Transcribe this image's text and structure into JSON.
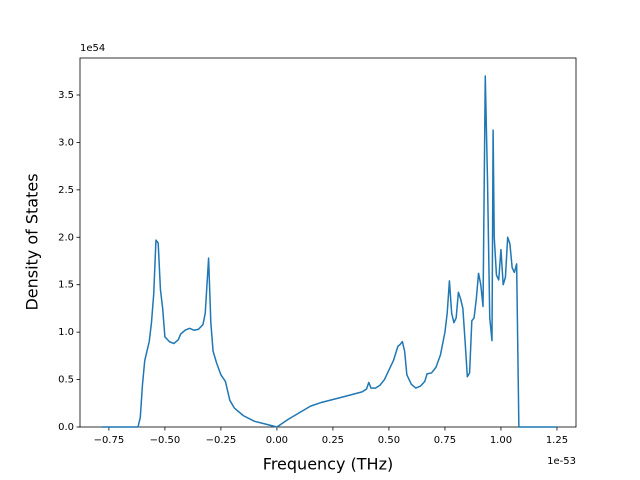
{
  "chart_data": {
    "type": "line",
    "xlabel": "Frequency (THz)",
    "ylabel": "Density of States",
    "x_offset_text": "1e-53",
    "y_offset_text": "1e54",
    "color": "#1f77b4",
    "x": [
      -0.78,
      -0.62,
      -0.61,
      -0.6,
      -0.59,
      -0.57,
      -0.56,
      -0.55,
      -0.54,
      -0.53,
      -0.52,
      -0.51,
      -0.5,
      -0.48,
      -0.46,
      -0.44,
      -0.43,
      -0.41,
      -0.39,
      -0.37,
      -0.35,
      -0.33,
      -0.32,
      -0.305,
      -0.295,
      -0.285,
      -0.27,
      -0.25,
      -0.23,
      -0.21,
      -0.19,
      -0.15,
      -0.1,
      -0.05,
      0,
      0.05,
      0.1,
      0.15,
      0.2,
      0.3,
      0.38,
      0.4,
      0.41,
      0.42,
      0.44,
      0.46,
      0.48,
      0.5,
      0.52,
      0.54,
      0.55,
      0.56,
      0.57,
      0.58,
      0.6,
      0.62,
      0.64,
      0.66,
      0.67,
      0.69,
      0.71,
      0.73,
      0.75,
      0.76,
      0.77,
      0.78,
      0.79,
      0.8,
      0.81,
      0.82,
      0.83,
      0.84,
      0.85,
      0.86,
      0.87,
      0.88,
      0.89,
      0.9,
      0.91,
      0.92,
      0.93,
      0.94,
      0.95,
      0.96,
      0.965,
      0.97,
      0.98,
      0.99,
      1.0,
      1.01,
      1.02,
      1.03,
      1.04,
      1.05,
      1.06,
      1.07,
      1.08,
      1.25
    ],
    "values": [
      0,
      0,
      0.1,
      0.45,
      0.7,
      0.9,
      1.1,
      1.4,
      1.97,
      1.94,
      1.45,
      1.25,
      0.95,
      0.9,
      0.88,
      0.92,
      0.98,
      1.02,
      1.04,
      1.02,
      1.03,
      1.08,
      1.2,
      1.78,
      1.1,
      0.8,
      0.68,
      0.55,
      0.48,
      0.28,
      0.2,
      0.12,
      0.06,
      0.03,
      0,
      0.08,
      0.15,
      0.22,
      0.26,
      0.32,
      0.37,
      0.4,
      0.47,
      0.41,
      0.41,
      0.44,
      0.5,
      0.6,
      0.7,
      0.85,
      0.87,
      0.9,
      0.8,
      0.55,
      0.45,
      0.41,
      0.43,
      0.48,
      0.56,
      0.57,
      0.63,
      0.76,
      1.0,
      1.2,
      1.54,
      1.2,
      1.1,
      1.15,
      1.42,
      1.35,
      1.25,
      0.9,
      0.53,
      0.57,
      1.12,
      1.15,
      1.35,
      1.62,
      1.5,
      1.27,
      3.7,
      2.6,
      1.15,
      0.91,
      3.13,
      2.0,
      1.6,
      1.55,
      1.87,
      1.5,
      1.58,
      2.0,
      1.93,
      1.68,
      1.63,
      1.72,
      0,
      0
    ],
    "xlim": [
      -0.879,
      1.335
    ],
    "ylim": [
      0,
      3.89
    ],
    "xticks": [
      {
        "value": -0.75,
        "label": "−0.75"
      },
      {
        "value": -0.5,
        "label": "−0.50"
      },
      {
        "value": -0.25,
        "label": "−0.25"
      },
      {
        "value": 0,
        "label": "0.00"
      },
      {
        "value": 0.25,
        "label": "0.25"
      },
      {
        "value": 0.5,
        "label": "0.50"
      },
      {
        "value": 0.75,
        "label": "0.75"
      },
      {
        "value": 1,
        "label": "1.00"
      },
      {
        "value": 1.25,
        "label": "1.25"
      }
    ],
    "yticks": [
      {
        "value": 0,
        "label": "0.0"
      },
      0.5,
      {
        "value": 1,
        "label": "1.0"
      },
      1.5,
      {
        "value": 2,
        "label": "2.0"
      },
      2.5,
      {
        "value": 3,
        "label": "3.0"
      },
      3.5
    ]
  }
}
